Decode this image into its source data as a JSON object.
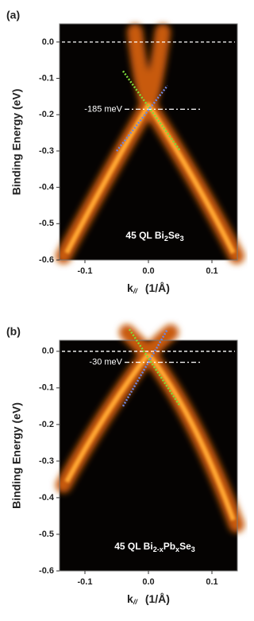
{
  "chart_data": [
    {
      "type": "heatmap",
      "panel_label": "(a)",
      "ylabel": "Binding Energy (eV)",
      "xlabel": [
        "k",
        "//",
        "(1/Å)"
      ],
      "xlim": [
        -0.14,
        0.14
      ],
      "xticks": [
        -0.1,
        {
          "value": 0,
          "label": "0.0"
        },
        0.1
      ],
      "ylim": [
        -0.6,
        0.05
      ],
      "yticks": [
        {
          "value": 0,
          "label": "0.0"
        },
        -0.1,
        -0.2,
        -0.3,
        -0.4,
        -0.5,
        -0.6
      ],
      "fermi_level": 0,
      "dirac_point": {
        "value": -0.185,
        "label": "-185 meV"
      },
      "sample": [
        "45 QL Bi",
        "2",
        "Se",
        "3"
      ],
      "lines": [
        {
          "color": "#7fdc3a",
          "x": [
            -0.04,
            0.05
          ],
          "values": [
            -0.08,
            -0.3
          ]
        },
        {
          "color": "#6f86e0",
          "x": [
            -0.05,
            0.03
          ],
          "values": [
            -0.3,
            -0.12
          ]
        }
      ]
    },
    {
      "type": "heatmap",
      "panel_label": "(b)",
      "ylabel": "Binding Energy (eV)",
      "xlabel": [
        "k",
        "//",
        "(1/Å)"
      ],
      "xlim": [
        -0.14,
        0.14
      ],
      "xticks": [
        -0.1,
        {
          "value": 0,
          "label": "0.0"
        },
        0.1
      ],
      "ylim": [
        -0.6,
        0.03
      ],
      "yticks": [
        {
          "value": 0,
          "label": "0.0"
        },
        -0.1,
        -0.2,
        -0.3,
        -0.4,
        -0.5,
        -0.6
      ],
      "fermi_level": 0,
      "dirac_point": {
        "value": -0.03,
        "label": "-30 meV"
      },
      "sample": [
        "45 QL Bi",
        "2-x",
        "Pb",
        "x",
        "Se",
        "3"
      ],
      "lines": [
        {
          "color": "#7fdc3a",
          "x": [
            -0.03,
            0.05
          ],
          "values": [
            0.06,
            -0.15
          ]
        },
        {
          "color": "#6f86e0",
          "x": [
            -0.04,
            0.03
          ],
          "values": [
            -0.15,
            0.06
          ]
        }
      ]
    }
  ]
}
